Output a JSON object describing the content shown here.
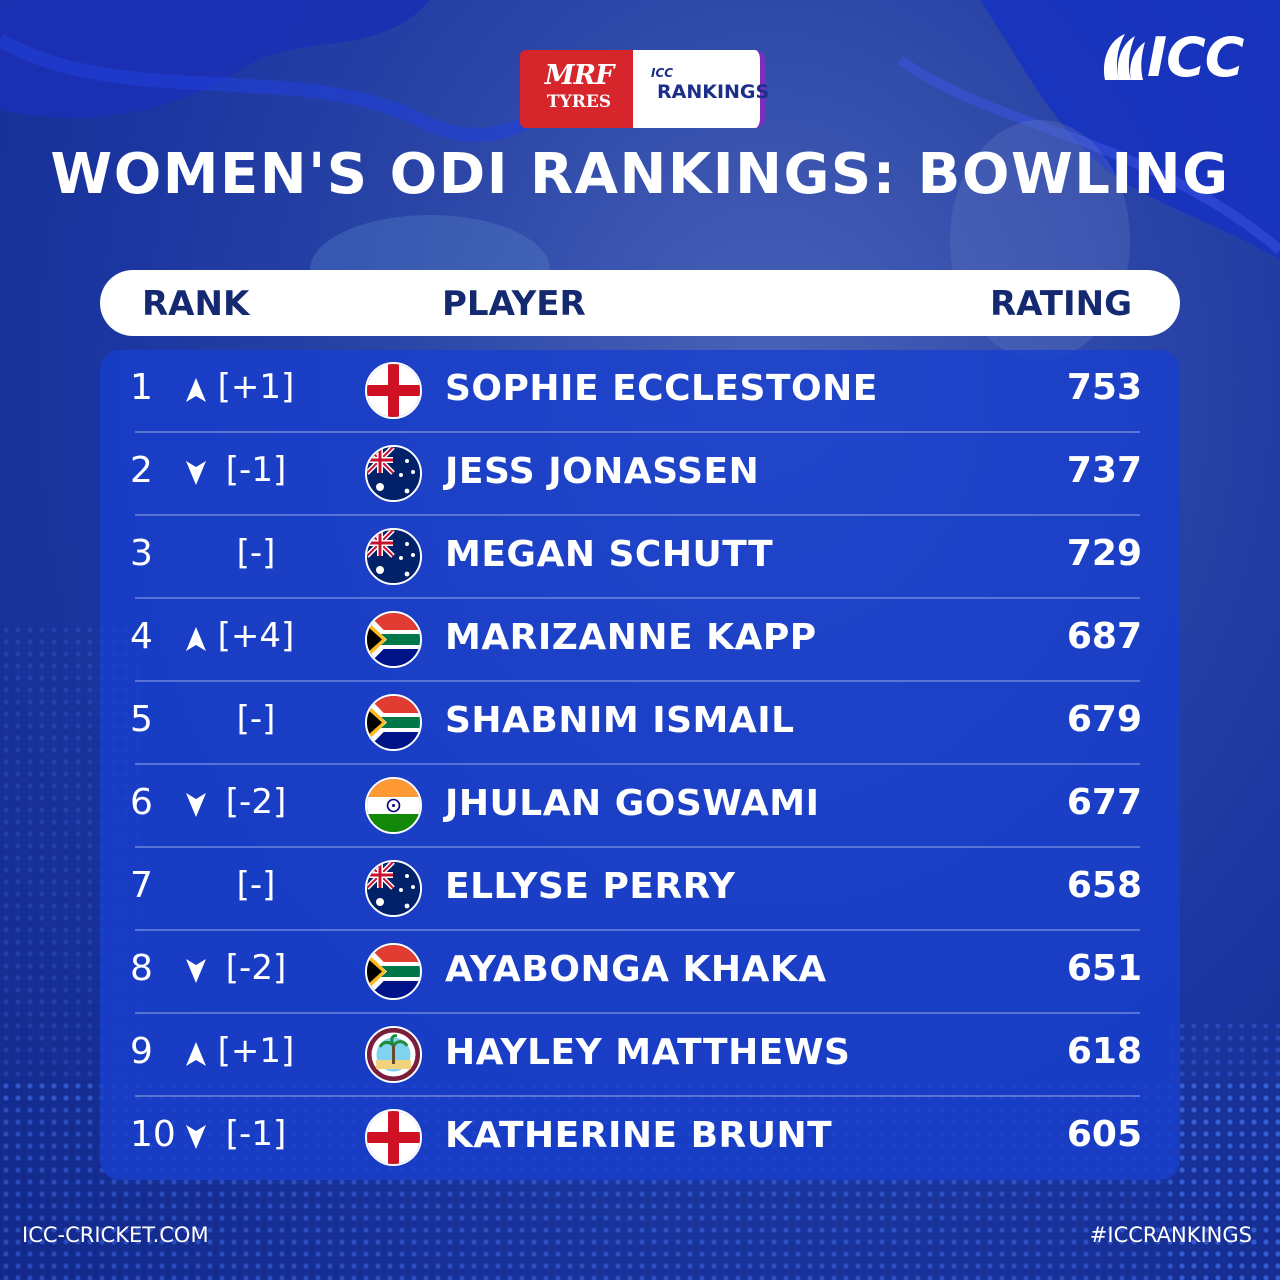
{
  "title": "WOMEN'S ODI RANKINGS: BOWLING",
  "brand": {
    "icc": "ICC",
    "sponsor_word": "MRF",
    "sponsor_sub": "TYRES",
    "badge_top": "ICC",
    "badge_word": "RANKINGS"
  },
  "header": {
    "rank": "RANK",
    "player": "PLAYER",
    "rating": "RATING"
  },
  "colors": {
    "up_arrow": "#ffffff",
    "down_arrow": "#ffffff",
    "accent": "#d6252b",
    "badge_edge": "#7a2fc0"
  },
  "rows": [
    {
      "rank": "1",
      "trend": "up",
      "change": "[+1]",
      "flag": "england",
      "name": "SOPHIE ECCLESTONE",
      "rating": "753"
    },
    {
      "rank": "2",
      "trend": "down",
      "change": "[-1]",
      "flag": "australia",
      "name": "JESS JONASSEN",
      "rating": "737"
    },
    {
      "rank": "3",
      "trend": "none",
      "change": "[-]",
      "flag": "australia",
      "name": "MEGAN SCHUTT",
      "rating": "729"
    },
    {
      "rank": "4",
      "trend": "up",
      "change": "[+4]",
      "flag": "south-africa",
      "name": "MARIZANNE KAPP",
      "rating": "687"
    },
    {
      "rank": "5",
      "trend": "none",
      "change": "[-]",
      "flag": "south-africa",
      "name": "SHABNIM ISMAIL",
      "rating": "679"
    },
    {
      "rank": "6",
      "trend": "down",
      "change": "[-2]",
      "flag": "india",
      "name": "JHULAN GOSWAMI",
      "rating": "677"
    },
    {
      "rank": "7",
      "trend": "none",
      "change": "[-]",
      "flag": "australia",
      "name": "ELLYSE PERRY",
      "rating": "658"
    },
    {
      "rank": "8",
      "trend": "down",
      "change": "[-2]",
      "flag": "south-africa",
      "name": "AYABONGA KHAKA",
      "rating": "651"
    },
    {
      "rank": "9",
      "trend": "up",
      "change": "[+1]",
      "flag": "west-indies",
      "name": "HAYLEY MATTHEWS",
      "rating": "618"
    },
    {
      "rank": "10",
      "trend": "down",
      "change": "[-1]",
      "flag": "england",
      "name": "KATHERINE BRUNT",
      "rating": "605"
    }
  ],
  "footer": {
    "site": "ICC-CRICKET.COM",
    "hashtag": "#ICCRANKINGS"
  }
}
